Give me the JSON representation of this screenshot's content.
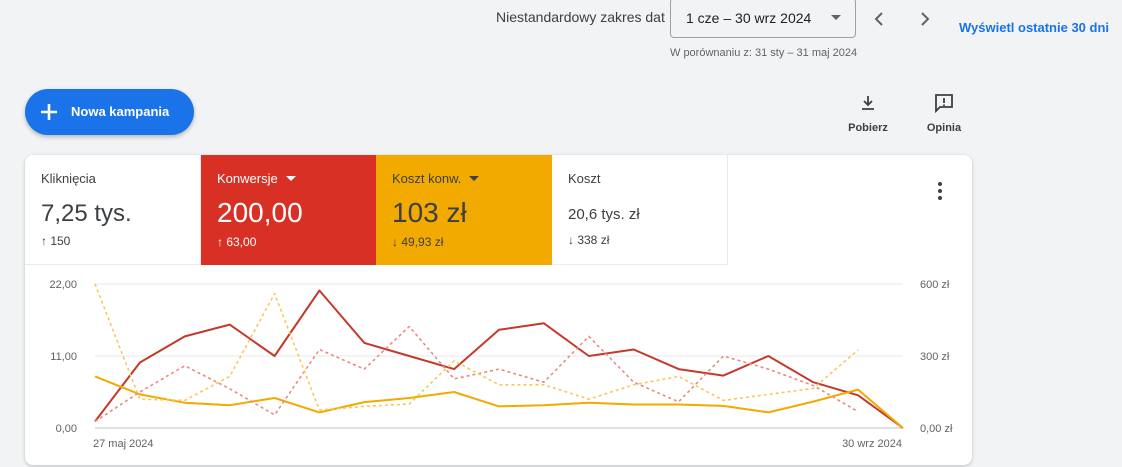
{
  "header": {
    "range_label": "Niestandardowy zakres dat",
    "range_value": "1 cze – 30 wrz 2024",
    "compare_text": "W porównaniu z: 31 sty – 31 maj 2024",
    "last30_link": "Wyświetl ostatnie 30 dni",
    "prev_icon": "chevron-left-icon",
    "next_icon": "chevron-right-icon"
  },
  "toolbar": {
    "new_campaign_label": "Nowa kampania",
    "download_label": "Pobierz",
    "feedback_label": "Opinia"
  },
  "metrics": {
    "clicks": {
      "name": "Kliknięcia",
      "value": "7,25 tys.",
      "delta": "↑ 150"
    },
    "conversions": {
      "name": "Konwersje",
      "value": "200,00",
      "delta": "↑ 63,00",
      "color": "#d93025"
    },
    "cost_per_conv": {
      "name": "Koszt konw.",
      "value": "103 zł",
      "delta": "↓ 49,93 zł",
      "color": "#f2a900"
    },
    "cost": {
      "name": "Koszt",
      "value": "20,6 tys. zł",
      "delta": "↓ 338 zł"
    }
  },
  "chart_data": {
    "type": "line",
    "x_start_label": "27 maj 2024",
    "x_end_label": "30 wrz 2024",
    "left_axis": {
      "ticks": [
        "22,00",
        "11,00",
        "0,00"
      ],
      "ylim": [
        0,
        22
      ]
    },
    "right_axis": {
      "ticks": [
        "600 zł",
        "300 zł",
        "0,00 zł"
      ],
      "ylim": [
        0,
        600
      ]
    },
    "grid": true,
    "series": [
      {
        "axis": "left",
        "dashed": false,
        "color": "#c5392a",
        "values": [
          1.0,
          10.0,
          14.0,
          15.8,
          11.0,
          21.0,
          13.0,
          11.0,
          9.0,
          15.0,
          16.0,
          11.0,
          12.0,
          9.0,
          8.0,
          11.0,
          7.0,
          5.0,
          0.0
        ]
      },
      {
        "axis": "right",
        "dashed": false,
        "color": "#f2a900",
        "values": [
          215,
          140,
          105,
          95,
          125,
          65,
          108,
          125,
          150,
          90,
          95,
          105,
          98,
          98,
          92,
          65,
          110,
          160,
          0
        ]
      },
      {
        "axis": "left",
        "dashed": true,
        "color": "#e88a80",
        "values": [
          1.0,
          5.5,
          9.5,
          6.0,
          2.0,
          12.0,
          9.0,
          15.5,
          7.5,
          9.0,
          7.0,
          14.0,
          7.0,
          4.0,
          11.0,
          9.0,
          6.5,
          2.5
        ]
      },
      {
        "axis": "right",
        "dashed": true,
        "color": "#f7c75a",
        "values": [
          600,
          120,
          115,
          215,
          560,
          75,
          90,
          100,
          280,
          180,
          180,
          120,
          180,
          215,
          115,
          140,
          165,
          325
        ]
      }
    ]
  }
}
